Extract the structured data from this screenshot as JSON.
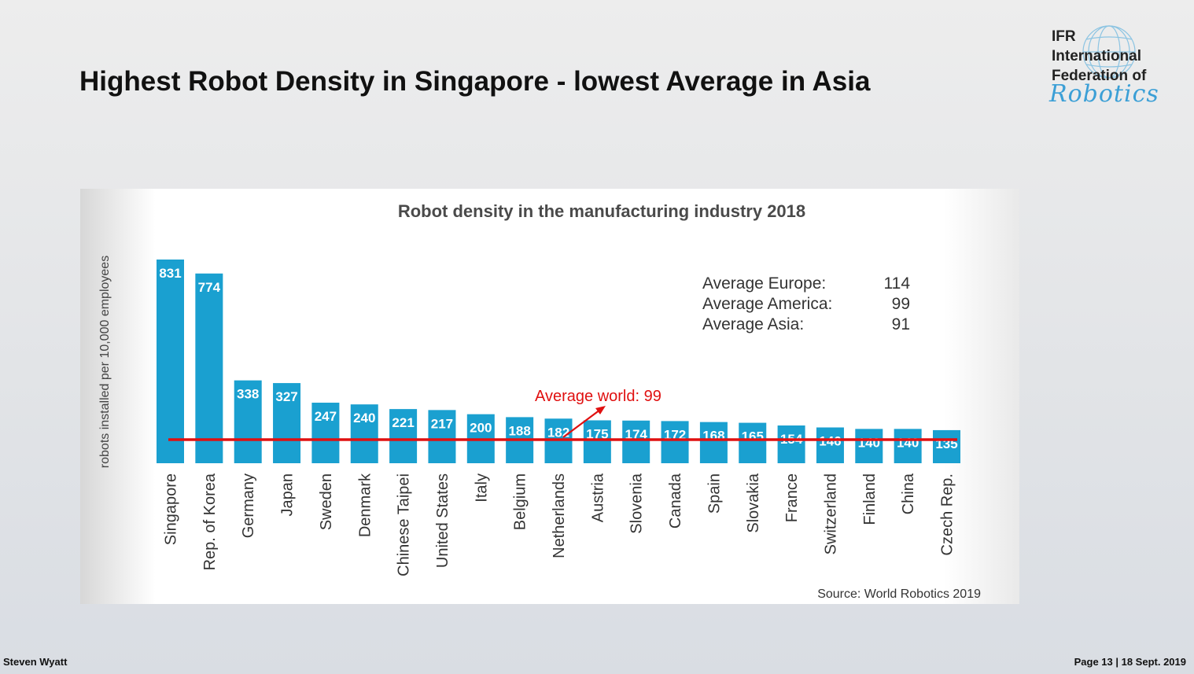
{
  "slide": {
    "title": "Highest Robot Density in Singapore - lowest Average in Asia",
    "footer_author": "Steven Wyatt",
    "footer_page": "Page 13 | 18 Sept. 2019"
  },
  "logo": {
    "line1": "IFR",
    "line2": "International",
    "line3": "Federation of",
    "script": "Robotics"
  },
  "chart_data": {
    "type": "bar",
    "title": "Robot density in the manufacturing industry 2018",
    "ylabel": "robots installed per 10,000 employees",
    "xlabel": "",
    "ylim": [
      0,
      831
    ],
    "grid": false,
    "categories": [
      "Singapore",
      "Rep. of Korea",
      "Germany",
      "Japan",
      "Sweden",
      "Denmark",
      "Chinese Taipei",
      "United States",
      "Italy",
      "Belgium",
      "Netherlands",
      "Austria",
      "Slovenia",
      "Canada",
      "Spain",
      "Slovakia",
      "France",
      "Switzerland",
      "Finland",
      "China",
      "Czech Rep."
    ],
    "values": [
      831,
      774,
      338,
      327,
      247,
      240,
      221,
      217,
      200,
      188,
      182,
      175,
      174,
      172,
      168,
      165,
      154,
      146,
      140,
      140,
      135
    ],
    "data_labels": [
      "831",
      "774",
      "338",
      "327",
      "247",
      "240",
      "221",
      "217",
      "200",
      "188",
      "182",
      "175",
      "174",
      "172",
      "168",
      "165",
      "154",
      "146",
      "140",
      "140",
      "135"
    ],
    "bar_color": "#1aa0d0",
    "reference_line": {
      "value": 99,
      "label": "Average world: 99",
      "color": "#e01010"
    },
    "averages": [
      {
        "label": "Average Europe:",
        "value": "114"
      },
      {
        "label": "Average America:",
        "value": "99"
      },
      {
        "label": "Average Asia:",
        "value": "91"
      }
    ],
    "source": "Source: World Robotics 2019"
  }
}
